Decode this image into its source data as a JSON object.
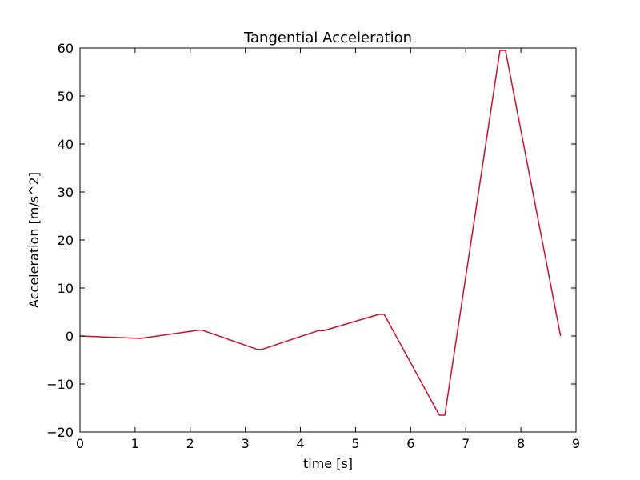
{
  "chart_data": {
    "type": "line",
    "title": "Tangential Acceleration",
    "xlabel": "time [s]",
    "ylabel": "Acceleration [m/s^2]",
    "xlim": [
      0,
      9
    ],
    "ylim": [
      -20,
      60
    ],
    "xticks": [
      0,
      1,
      2,
      3,
      4,
      5,
      6,
      7,
      8,
      9
    ],
    "yticks": [
      -20,
      -10,
      0,
      10,
      20,
      30,
      40,
      50,
      60
    ],
    "xtick_labels": [
      "0",
      "1",
      "2",
      "3",
      "4",
      "5",
      "6",
      "7",
      "8",
      "9"
    ],
    "ytick_labels": [
      "−20",
      "−10",
      "0",
      "10",
      "20",
      "30",
      "40",
      "50",
      "60"
    ],
    "grid": false,
    "series": [
      {
        "color": "#c8102e",
        "x": [
          0.0,
          1.1,
          2.15,
          2.22,
          3.22,
          3.3,
          4.32,
          4.42,
          5.42,
          5.52,
          6.52,
          6.62,
          7.62,
          7.72,
          8.72
        ],
        "y": [
          0.0,
          -0.5,
          1.2,
          1.2,
          -2.8,
          -2.8,
          1.1,
          1.1,
          4.5,
          4.5,
          -16.5,
          -16.5,
          59.5,
          59.5,
          0.0
        ]
      }
    ]
  }
}
